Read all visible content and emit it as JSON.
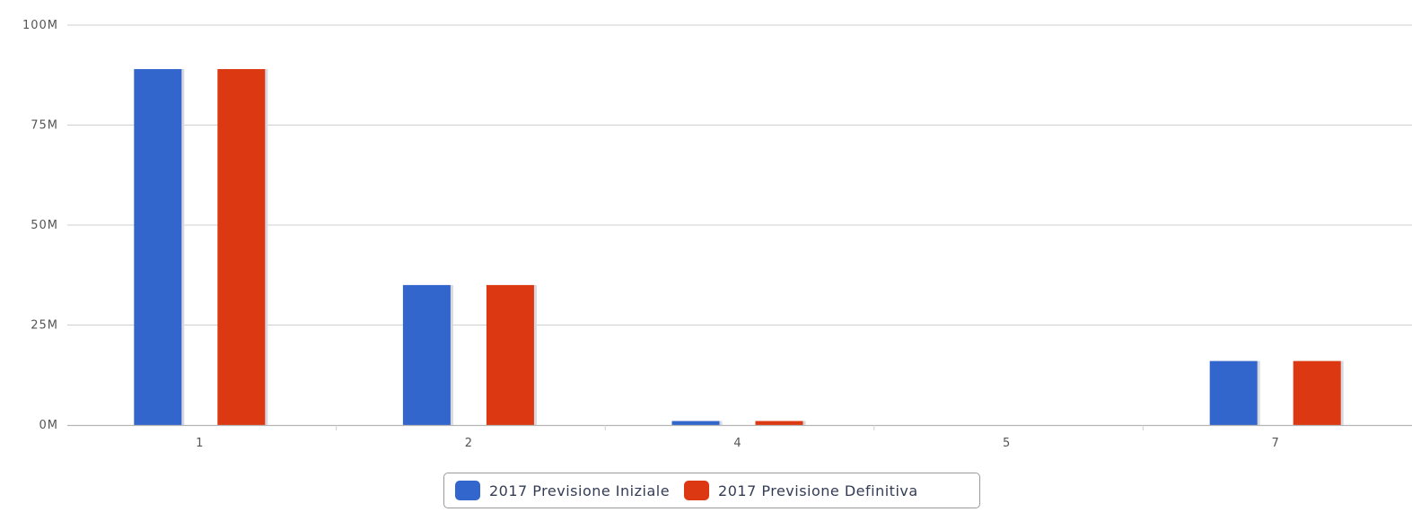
{
  "chart_data": {
    "type": "bar",
    "categories": [
      "1",
      "2",
      "4",
      "5",
      "7"
    ],
    "series": [
      {
        "name": "2017 Previsione Iniziale",
        "color": "#3366cc",
        "values": [
          89000000,
          35000000,
          1000000,
          0,
          16000000
        ]
      },
      {
        "name": "2017 Previsione Definitiva",
        "color": "#dc3912",
        "values": [
          89000000,
          35000000,
          1000000,
          0,
          16000000
        ]
      }
    ],
    "yticks": [
      {
        "value": 0,
        "label": "0M"
      },
      {
        "value": 25000000,
        "label": "25M"
      },
      {
        "value": 50000000,
        "label": "50M"
      },
      {
        "value": 75000000,
        "label": "75M"
      },
      {
        "value": 100000000,
        "label": "100M"
      }
    ],
    "ylim": [
      0,
      100000000
    ],
    "title": "",
    "xlabel": "",
    "ylabel": "",
    "grid": true,
    "legend_position": "bottom"
  }
}
